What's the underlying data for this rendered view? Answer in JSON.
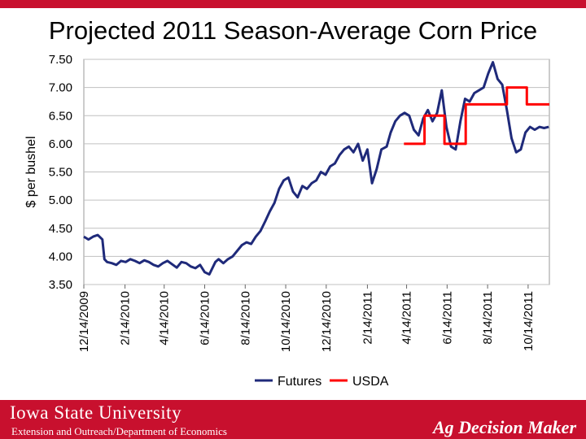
{
  "slide": {
    "title": "Projected 2011 Season-Average Corn Price"
  },
  "footer": {
    "university": "Iowa State University",
    "department": "Extension and Outreach/Department of Economics",
    "brand": "Ag Decision Maker"
  },
  "colors": {
    "accent": "#c8102e",
    "futures": "#1f2a7a",
    "usda": "#ff0000",
    "grid": "#c0c0c0"
  },
  "chart_data": {
    "type": "line",
    "title": "Projected 2011 Season-Average Corn Price",
    "ylabel": "$ per bushel",
    "xlabel": "",
    "ylim": [
      3.5,
      7.5
    ],
    "y_ticks": [
      "3.50",
      "4.00",
      "4.50",
      "5.00",
      "5.50",
      "6.00",
      "6.50",
      "7.00",
      "7.50"
    ],
    "x_ticks": [
      "12/14/2009",
      "2/14/2010",
      "4/14/2010",
      "6/14/2010",
      "8/14/2010",
      "10/14/2010",
      "12/14/2010",
      "2/14/2011",
      "4/14/2011",
      "6/14/2011",
      "8/14/2011",
      "10/14/2011"
    ],
    "xlim": [
      "2009-12-14",
      "2011-11-15"
    ],
    "grid": "horizontal",
    "legend_position": "bottom",
    "series": [
      {
        "name": "Futures",
        "color": "#1f2a7a",
        "x": [
          "2009-12-14",
          "2009-12-21",
          "2009-12-28",
          "2010-01-04",
          "2010-01-11",
          "2010-01-14",
          "2010-01-18",
          "2010-01-25",
          "2010-02-01",
          "2010-02-08",
          "2010-02-15",
          "2010-02-22",
          "2010-03-01",
          "2010-03-08",
          "2010-03-15",
          "2010-03-22",
          "2010-03-29",
          "2010-04-05",
          "2010-04-12",
          "2010-04-19",
          "2010-04-26",
          "2010-05-03",
          "2010-05-10",
          "2010-05-17",
          "2010-05-24",
          "2010-05-31",
          "2010-06-07",
          "2010-06-14",
          "2010-06-21",
          "2010-06-30",
          "2010-07-05",
          "2010-07-12",
          "2010-07-19",
          "2010-07-26",
          "2010-08-02",
          "2010-08-09",
          "2010-08-16",
          "2010-08-23",
          "2010-08-30",
          "2010-09-06",
          "2010-09-13",
          "2010-09-20",
          "2010-09-27",
          "2010-10-04",
          "2010-10-11",
          "2010-10-18",
          "2010-10-25",
          "2010-11-01",
          "2010-11-08",
          "2010-11-15",
          "2010-11-22",
          "2010-11-29",
          "2010-12-06",
          "2010-12-13",
          "2010-12-20",
          "2010-12-27",
          "2011-01-03",
          "2011-01-10",
          "2011-01-17",
          "2011-01-24",
          "2011-01-31",
          "2011-02-07",
          "2011-02-14",
          "2011-02-21",
          "2011-02-28",
          "2011-03-07",
          "2011-03-15",
          "2011-03-21",
          "2011-03-28",
          "2011-04-04",
          "2011-04-11",
          "2011-04-18",
          "2011-04-25",
          "2011-05-02",
          "2011-05-09",
          "2011-05-16",
          "2011-05-23",
          "2011-05-30",
          "2011-06-06",
          "2011-06-13",
          "2011-06-20",
          "2011-06-27",
          "2011-07-04",
          "2011-07-11",
          "2011-07-18",
          "2011-07-25",
          "2011-08-01",
          "2011-08-08",
          "2011-08-15",
          "2011-08-22",
          "2011-08-29",
          "2011-09-05",
          "2011-09-12",
          "2011-09-19",
          "2011-09-26",
          "2011-10-03",
          "2011-10-10",
          "2011-10-17",
          "2011-10-24",
          "2011-10-31",
          "2011-11-07",
          "2011-11-14"
        ],
        "values": [
          4.35,
          4.3,
          4.35,
          4.38,
          4.3,
          3.95,
          3.9,
          3.88,
          3.85,
          3.92,
          3.9,
          3.95,
          3.92,
          3.88,
          3.93,
          3.9,
          3.85,
          3.82,
          3.88,
          3.92,
          3.86,
          3.8,
          3.9,
          3.88,
          3.82,
          3.79,
          3.85,
          3.72,
          3.68,
          3.9,
          3.95,
          3.88,
          3.95,
          4.0,
          4.1,
          4.2,
          4.25,
          4.22,
          4.35,
          4.45,
          4.62,
          4.8,
          4.95,
          5.2,
          5.35,
          5.4,
          5.15,
          5.05,
          5.25,
          5.2,
          5.3,
          5.35,
          5.5,
          5.45,
          5.6,
          5.65,
          5.8,
          5.9,
          5.95,
          5.85,
          6.0,
          5.7,
          5.9,
          5.3,
          5.55,
          5.9,
          5.95,
          6.2,
          6.4,
          6.5,
          6.55,
          6.5,
          6.25,
          6.15,
          6.45,
          6.6,
          6.4,
          6.55,
          6.95,
          6.3,
          5.95,
          5.9,
          6.4,
          6.8,
          6.75,
          6.9,
          6.95,
          7.0,
          7.25,
          7.45,
          7.15,
          7.05,
          6.6,
          6.1,
          5.85,
          5.9,
          6.2,
          6.3,
          6.25,
          6.3,
          6.28,
          6.3
        ]
      },
      {
        "name": "USDA",
        "color": "#ff0000",
        "step": true,
        "x": [
          "2011-04-10",
          "2011-05-11",
          "2011-06-10",
          "2011-07-12",
          "2011-08-11",
          "2011-09-12",
          "2011-10-12",
          "2011-11-15"
        ],
        "values": [
          6.0,
          6.5,
          6.0,
          6.7,
          6.7,
          7.0,
          6.7,
          6.7
        ]
      }
    ]
  }
}
